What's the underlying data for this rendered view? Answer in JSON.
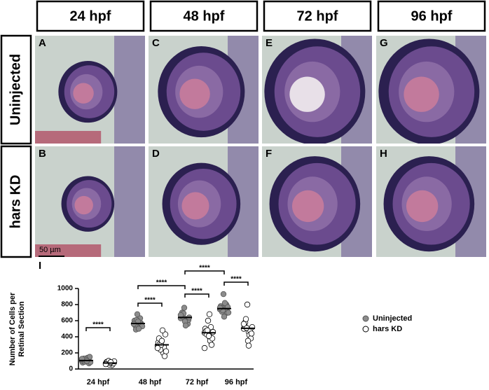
{
  "column_headers": [
    "24 hpf",
    "48 hpf",
    "72 hpf",
    "96 hpf"
  ],
  "row_labels": [
    "Uninjected",
    "hars KD"
  ],
  "panels": [
    "A",
    "C",
    "E",
    "G",
    "B",
    "D",
    "F",
    "H"
  ],
  "scale_bar": "50 µm",
  "chart_data": {
    "type": "scatter",
    "panel_label": "I",
    "y_label": [
      "Number of Cells per",
      "Retinal Section"
    ],
    "categories": [
      "24 hpf",
      "48 hpf",
      "72 hpf",
      "96 hpf"
    ],
    "ylim": [
      0,
      1000
    ],
    "yticks": [
      0,
      200,
      400,
      600,
      800,
      1000
    ],
    "series": [
      {
        "name": "Uninjected",
        "color": "#8c8c8c",
        "means": [
          105,
          565,
          640,
          750
        ],
        "values": [
          [
            100,
            120,
            80,
            140,
            95,
            110,
            130,
            70,
            90,
            150,
            105,
            85,
            115,
            125,
            100
          ],
          [
            560,
            520,
            600,
            580,
            540,
            630,
            490,
            570,
            610,
            550,
            680,
            530,
            590,
            560,
            500
          ],
          [
            630,
            600,
            660,
            580,
            700,
            620,
            650,
            560,
            690,
            610,
            760,
            640,
            590,
            670,
            540
          ],
          [
            740,
            720,
            780,
            690,
            760,
            800,
            710,
            750,
            730,
            770,
            930,
            700,
            650,
            760,
            820
          ]
        ]
      },
      {
        "name": "hars KD",
        "color": "#ffffff",
        "means": [
          74,
          300,
          450,
          505
        ],
        "values": [
          [
            70,
            60,
            85,
            75,
            90,
            50,
            65,
            80,
            100,
            70,
            55,
            95,
            75,
            60,
            85
          ],
          [
            290,
            250,
            330,
            200,
            380,
            270,
            310,
            160,
            240,
            430,
            300,
            220,
            350,
            260,
            480
          ],
          [
            450,
            400,
            500,
            350,
            470,
            520,
            430,
            300,
            480,
            380,
            600,
            460,
            410,
            260,
            680
          ],
          [
            500,
            460,
            540,
            420,
            580,
            480,
            620,
            380,
            510,
            440,
            800,
            520,
            350,
            560,
            290
          ]
        ]
      }
    ],
    "annotations": [
      "****",
      "****",
      "****",
      "****",
      "****",
      "****"
    ]
  }
}
